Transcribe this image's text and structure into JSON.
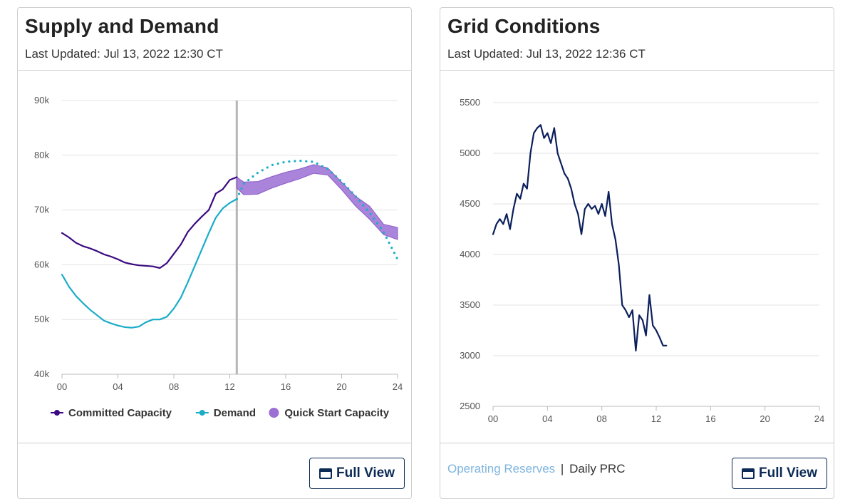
{
  "left_card": {
    "title": "Supply and Demand",
    "updated": "Last Updated: Jul 13, 2022 12:30 CT",
    "full_view_label": "Full View"
  },
  "right_card": {
    "title": "Grid Conditions",
    "updated": "Last Updated: Jul 13, 2022 12:36 CT",
    "full_view_label": "Full View",
    "link_operating_reserves": "Operating Reserves",
    "separator": "|",
    "link_daily_prc": "Daily PRC"
  },
  "chart_data": [
    {
      "type": "line",
      "title": "",
      "xlabel": "",
      "ylabel": "",
      "xlim": [
        0,
        24
      ],
      "ylim": [
        40000,
        90000
      ],
      "x_ticks": [
        "00",
        "04",
        "08",
        "12",
        "16",
        "20",
        "24"
      ],
      "y_ticks": [
        "40k",
        "50k",
        "60k",
        "70k",
        "80k",
        "90k"
      ],
      "grid": true,
      "legend": "bottom",
      "current_time_marker": 12.5,
      "series": [
        {
          "name": "Committed Capacity",
          "color": "#3b0a80",
          "style": "solid",
          "x": [
            0,
            0.5,
            1,
            1.5,
            2,
            2.5,
            3,
            3.5,
            4,
            4.5,
            5,
            5.5,
            6,
            6.5,
            7,
            7.5,
            8,
            8.5,
            9,
            9.5,
            10,
            10.5,
            11,
            11.5,
            12,
            12.5
          ],
          "values": [
            65800,
            65000,
            64000,
            63400,
            63000,
            62500,
            61900,
            61500,
            61000,
            60400,
            60100,
            59900,
            59800,
            59700,
            59400,
            60300,
            62000,
            63700,
            66000,
            67500,
            68800,
            70000,
            73000,
            73800,
            75500,
            76000
          ]
        },
        {
          "name": "Demand",
          "color": "#1aacc8",
          "style": "solid",
          "x": [
            0,
            0.5,
            1,
            1.5,
            2,
            2.5,
            3,
            3.5,
            4,
            4.5,
            5,
            5.5,
            6,
            6.5,
            7,
            7.5,
            8,
            8.5,
            9,
            9.5,
            10,
            10.5,
            11,
            11.5,
            12,
            12.5
          ],
          "values": [
            58200,
            56000,
            54300,
            53000,
            51800,
            50800,
            49800,
            49300,
            48900,
            48600,
            48500,
            48700,
            49500,
            50000,
            50000,
            50500,
            52000,
            54000,
            56800,
            59800,
            62800,
            65800,
            68600,
            70300,
            71300,
            72000
          ]
        },
        {
          "name": "Demand (forecast)",
          "color": "#1aacc8",
          "style": "dotted",
          "x": [
            12.5,
            13,
            14,
            15,
            16,
            17,
            18,
            19,
            20,
            21,
            22,
            23,
            24
          ],
          "values": [
            72000,
            74800,
            76800,
            78200,
            78800,
            79000,
            78800,
            77500,
            75200,
            72500,
            69500,
            66000,
            61000
          ]
        },
        {
          "name": "Quick Start Capacity",
          "color": "#9b6fd4",
          "style": "band",
          "x": [
            12.5,
            13,
            14,
            15,
            16,
            17,
            18,
            19,
            20,
            21,
            22,
            23,
            24
          ],
          "lower": [
            74000,
            72800,
            72900,
            74000,
            74900,
            75700,
            76700,
            76400,
            73700,
            70700,
            68300,
            65500,
            64600
          ],
          "upper": [
            76000,
            75100,
            75200,
            76100,
            76900,
            77500,
            78300,
            77700,
            75100,
            72500,
            70700,
            67400,
            66800
          ]
        }
      ]
    },
    {
      "type": "line",
      "title": "",
      "xlabel": "",
      "ylabel": "",
      "xlim": [
        0,
        24
      ],
      "ylim": [
        2500,
        5500
      ],
      "x_ticks": [
        "00",
        "04",
        "08",
        "12",
        "16",
        "20",
        "24"
      ],
      "y_ticks": [
        "2500",
        "3000",
        "3500",
        "4000",
        "4500",
        "5000",
        "5500"
      ],
      "grid": true,
      "legend": "none",
      "series": [
        {
          "name": "",
          "color": "#0b1f5c",
          "style": "solid",
          "x": [
            0,
            0.25,
            0.5,
            0.75,
            1,
            1.25,
            1.5,
            1.75,
            2,
            2.25,
            2.5,
            2.75,
            3,
            3.25,
            3.5,
            3.75,
            4,
            4.25,
            4.5,
            4.75,
            5,
            5.25,
            5.5,
            5.75,
            6,
            6.25,
            6.5,
            6.75,
            7,
            7.25,
            7.5,
            7.75,
            8,
            8.25,
            8.5,
            8.75,
            9,
            9.25,
            9.5,
            9.75,
            10,
            10.25,
            10.5,
            10.75,
            11,
            11.25,
            11.5,
            11.75,
            12,
            12.25,
            12.5,
            12.75
          ],
          "values": [
            4200,
            4300,
            4350,
            4300,
            4400,
            4250,
            4450,
            4600,
            4550,
            4700,
            4650,
            5000,
            5200,
            5250,
            5280,
            5150,
            5200,
            5100,
            5250,
            5000,
            4900,
            4800,
            4750,
            4650,
            4500,
            4400,
            4200,
            4450,
            4500,
            4450,
            4480,
            4400,
            4500,
            4380,
            4620,
            4300,
            4150,
            3900,
            3500,
            3450,
            3380,
            3450,
            3050,
            3400,
            3350,
            3200,
            3600,
            3300,
            3250,
            3180,
            3100,
            3100
          ]
        }
      ]
    }
  ]
}
